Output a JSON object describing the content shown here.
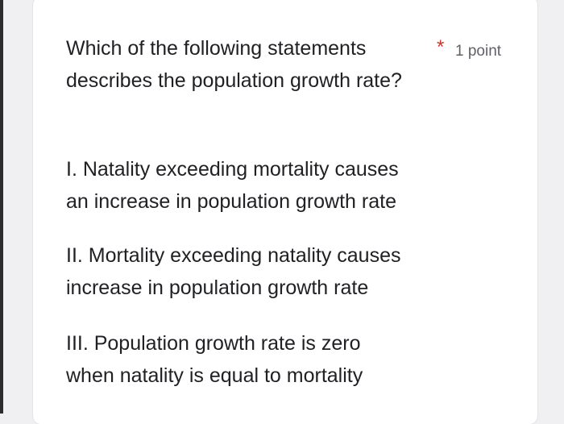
{
  "question": {
    "line1": "Which of the following statements",
    "line2": "describes the population growth rate?",
    "required_marker": "*",
    "points": "1 point"
  },
  "statements": [
    {
      "line1": "I. Natality exceeding mortality causes",
      "line2": "an increase in population growth rate"
    },
    {
      "line1": "II. Mortality exceeding natality causes",
      "line2": "increase in population growth rate"
    },
    {
      "line1": "III. Population growth rate is zero",
      "line2": "when natality is equal to mortality"
    }
  ],
  "colors": {
    "background": "#f0f0f3",
    "card": "#ffffff",
    "text": "#202124",
    "required": "#d93025",
    "secondary": "#5f6368"
  }
}
